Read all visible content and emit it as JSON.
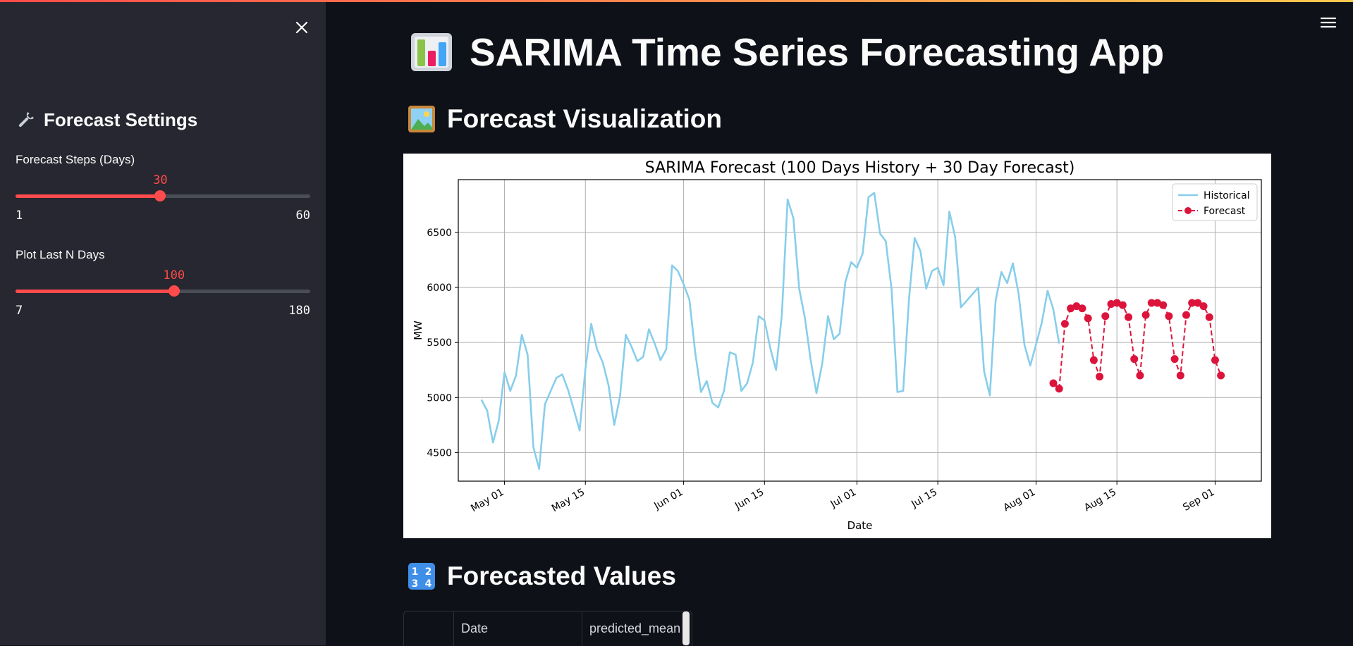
{
  "app": {
    "title": "SARIMA Time Series Forecasting App",
    "accent_color": "#ff4b4b"
  },
  "sidebar": {
    "header": "Forecast Settings",
    "header_icon": "wrench-icon",
    "sliders": [
      {
        "label": "Forecast Steps (Days)",
        "value": "30",
        "min": "1",
        "max": "60",
        "fraction": 0.4915
      },
      {
        "label": "Plot Last N Days",
        "value": "100",
        "min": "7",
        "max": "180",
        "fraction": 0.5376
      }
    ]
  },
  "sections": {
    "viz_title": "Forecast Visualization",
    "values_title": "Forecasted Values"
  },
  "table": {
    "columns": [
      "",
      "Date",
      "predicted_mean"
    ]
  },
  "chart_data": {
    "type": "line",
    "title": "SARIMA Forecast (100 Days History + 30 Day Forecast)",
    "xlabel": "Date",
    "ylabel": "MW",
    "ylim": [
      4240,
      6980
    ],
    "yticks": [
      4500,
      5000,
      5500,
      6000,
      6500
    ],
    "xlim": [
      "2024-04-23",
      "2024-09-09"
    ],
    "xticks": [
      {
        "date": "2024-05-01",
        "label": "May 01"
      },
      {
        "date": "2024-05-15",
        "label": "May 15"
      },
      {
        "date": "2024-06-01",
        "label": "Jun 01"
      },
      {
        "date": "2024-06-15",
        "label": "Jun 15"
      },
      {
        "date": "2024-07-01",
        "label": "Jul 01"
      },
      {
        "date": "2024-07-15",
        "label": "Jul 15"
      },
      {
        "date": "2024-08-01",
        "label": "Aug 01"
      },
      {
        "date": "2024-08-15",
        "label": "Aug 15"
      },
      {
        "date": "2024-09-01",
        "label": "Sep 01"
      }
    ],
    "grid": true,
    "legend_position": "top-right",
    "series": [
      {
        "name": "Historical",
        "color": "#87ceeb",
        "style": "solid",
        "start_date": "2024-04-27",
        "values": [
          4980,
          4880,
          4590,
          4790,
          5230,
          5060,
          5200,
          5570,
          5390,
          4550,
          4350,
          4940,
          5060,
          5180,
          5210,
          5070,
          4890,
          4700,
          5260,
          5670,
          5440,
          5320,
          5110,
          4750,
          5010,
          5570,
          5460,
          5330,
          5370,
          5620,
          5490,
          5340,
          5440,
          6200,
          6150,
          6030,
          5890,
          5410,
          5050,
          5150,
          4950,
          4910,
          5060,
          5410,
          5390,
          5060,
          5130,
          5320,
          5740,
          5700,
          5450,
          5250,
          5750,
          6800,
          6630,
          5990,
          5720,
          5340,
          5040,
          5310,
          5740,
          5530,
          5580,
          6050,
          6230,
          6180,
          6310,
          6820,
          6860,
          6490,
          6420,
          5980,
          5050,
          5060,
          5890,
          6450,
          6330,
          5990,
          6150,
          6180,
          6020,
          6690,
          6460,
          5820,
          5880,
          5940,
          6000,
          5240,
          5020,
          5880,
          6140,
          6040,
          6220,
          5940,
          5480,
          5290,
          5480,
          5680,
          5970,
          5800,
          5490
        ]
      },
      {
        "name": "Forecast",
        "color": "#dc143c",
        "style": "dashed",
        "marker": "circle",
        "start_date": "2024-08-04",
        "values": [
          5130,
          5080,
          5670,
          5810,
          5830,
          5810,
          5720,
          5340,
          5190,
          5740,
          5850,
          5860,
          5840,
          5730,
          5350,
          5200,
          5750,
          5860,
          5860,
          5840,
          5740,
          5350,
          5200,
          5750,
          5860,
          5860,
          5830,
          5730,
          5340,
          5200
        ]
      }
    ]
  }
}
